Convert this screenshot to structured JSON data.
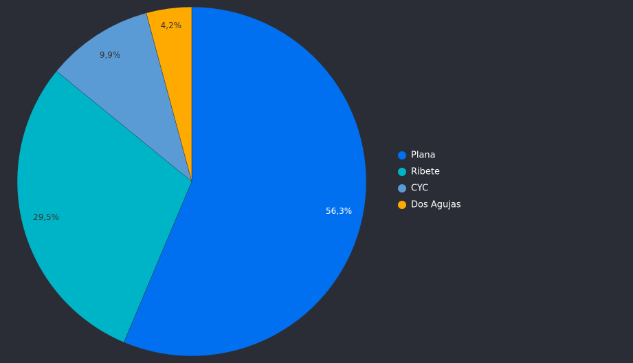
{
  "chart_data": {
    "type": "pie",
    "categories": [
      "Plana",
      "Ribete",
      "CYC",
      "Dos Agujas"
    ],
    "values": [
      56.3,
      29.5,
      9.9,
      4.2
    ],
    "value_labels": [
      "56,3%",
      "29,5%",
      "9,9%",
      "4,2%"
    ],
    "colors": [
      "#0070f0",
      "#00b4c8",
      "#5b9bd5",
      "#ffaa00"
    ],
    "label_colors": [
      "#ffffff",
      "#333333",
      "#333333",
      "#333333"
    ],
    "legend": "right"
  }
}
